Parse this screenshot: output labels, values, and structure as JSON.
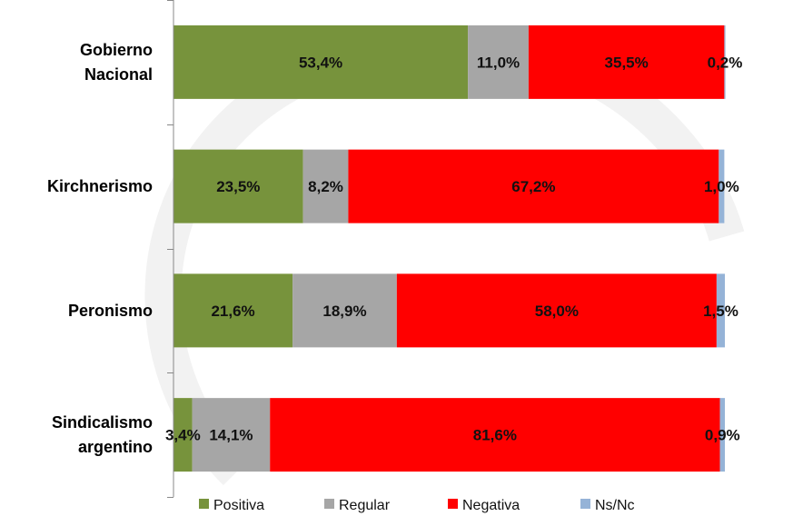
{
  "chart_data": {
    "type": "bar",
    "orientation": "horizontal",
    "stacked": true,
    "categories": [
      [
        "Gobierno",
        "Nacional"
      ],
      [
        "Kirchnerismo"
      ],
      [
        "Peronismo"
      ],
      [
        "Sindicalismo",
        "argentino"
      ]
    ],
    "series": [
      {
        "name": "Positiva",
        "color": "#77933C",
        "values": [
          53.4,
          23.5,
          21.6,
          3.4
        ],
        "labels": [
          "53,4%",
          "23,5%",
          "21,6%",
          "3,4%"
        ]
      },
      {
        "name": "Regular",
        "color": "#A6A6A6",
        "values": [
          11.0,
          8.2,
          18.9,
          14.1
        ],
        "labels": [
          "11,0%",
          "8,2%",
          "18,9%",
          "14,1%"
        ]
      },
      {
        "name": "Negativa",
        "color": "#FF0000",
        "values": [
          35.5,
          67.2,
          58.0,
          81.6
        ],
        "labels": [
          "35,5%",
          "67,2%",
          "58,0%",
          "81,6%"
        ]
      },
      {
        "name": "Ns/Nc",
        "color": "#95B3D7",
        "values": [
          0.2,
          1.0,
          1.5,
          0.9
        ],
        "labels": [
          "0,2%",
          "1,0%",
          "1,5%",
          "0,9%"
        ]
      }
    ],
    "xlim": [
      0,
      100
    ],
    "legend": "bottom",
    "grid": false
  }
}
